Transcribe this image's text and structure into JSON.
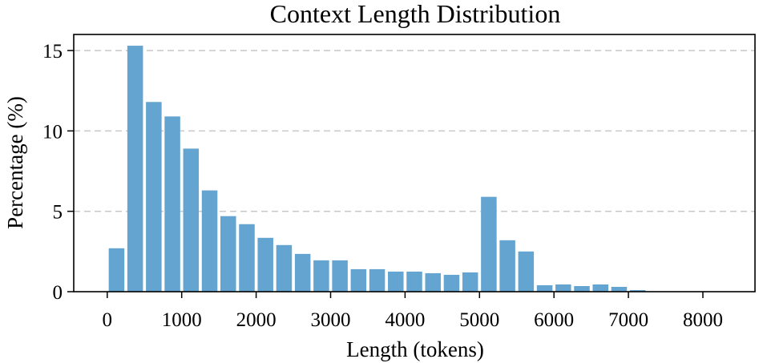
{
  "chart_data": {
    "type": "bar",
    "title": "Context Length Distribution",
    "xlabel": "Length (tokens)",
    "ylabel": "Percentage (%)",
    "xlim": [
      -450,
      8700
    ],
    "ylim": [
      0,
      16
    ],
    "xticks": [
      0,
      1000,
      2000,
      3000,
      4000,
      5000,
      6000,
      7000,
      8000
    ],
    "yticks": [
      0,
      5,
      10,
      15
    ],
    "grid": "y-dashed",
    "bar_width": 210,
    "color": "#64a4d0",
    "bars": [
      {
        "x": 125,
        "value": 2.7
      },
      {
        "x": 375,
        "value": 15.3
      },
      {
        "x": 625,
        "value": 11.8
      },
      {
        "x": 875,
        "value": 10.9
      },
      {
        "x": 1125,
        "value": 8.9
      },
      {
        "x": 1375,
        "value": 6.3
      },
      {
        "x": 1625,
        "value": 4.7
      },
      {
        "x": 1875,
        "value": 4.2
      },
      {
        "x": 2125,
        "value": 3.35
      },
      {
        "x": 2375,
        "value": 2.9
      },
      {
        "x": 2625,
        "value": 2.35
      },
      {
        "x": 2875,
        "value": 1.95
      },
      {
        "x": 3125,
        "value": 1.95
      },
      {
        "x": 3375,
        "value": 1.4
      },
      {
        "x": 3625,
        "value": 1.4
      },
      {
        "x": 3875,
        "value": 1.25
      },
      {
        "x": 4125,
        "value": 1.25
      },
      {
        "x": 4375,
        "value": 1.15
      },
      {
        "x": 4625,
        "value": 1.05
      },
      {
        "x": 4875,
        "value": 1.2
      },
      {
        "x": 5125,
        "value": 5.9
      },
      {
        "x": 5375,
        "value": 3.2
      },
      {
        "x": 5625,
        "value": 2.5
      },
      {
        "x": 5875,
        "value": 0.4
      },
      {
        "x": 6125,
        "value": 0.45
      },
      {
        "x": 6375,
        "value": 0.35
      },
      {
        "x": 6625,
        "value": 0.45
      },
      {
        "x": 6875,
        "value": 0.3
      },
      {
        "x": 7125,
        "value": 0.1
      }
    ]
  }
}
